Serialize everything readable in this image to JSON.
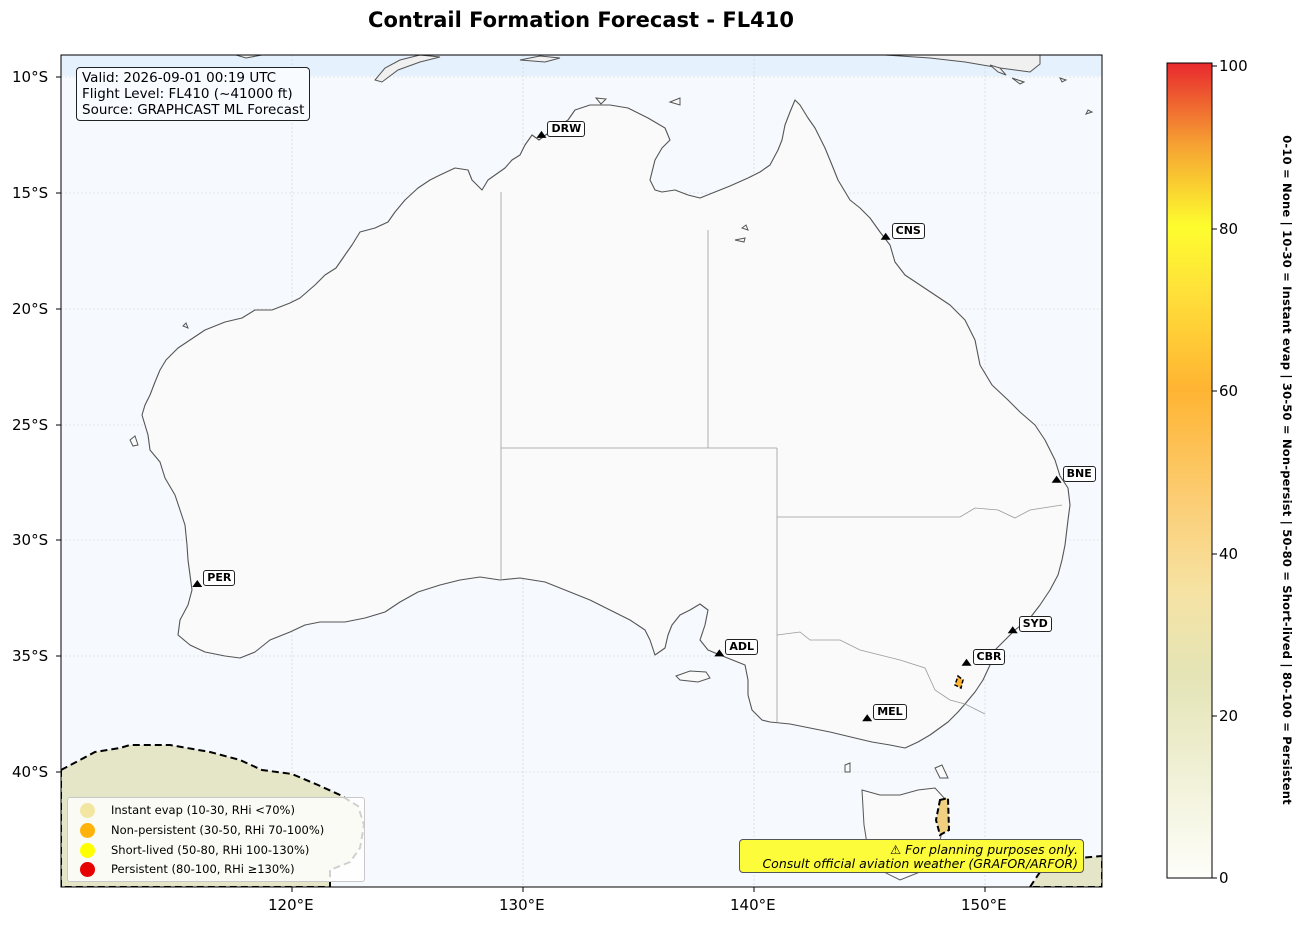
{
  "title": "Contrail Formation Forecast - FL410",
  "info": {
    "valid": "Valid: 2026-09-01 00:19 UTC",
    "flight_level": "Flight Level: FL410 (~41000 ft)",
    "source": "Source: GRAPHCAST ML Forecast"
  },
  "axes": {
    "lat_ticks": [
      "10°S",
      "15°S",
      "20°S",
      "25°S",
      "30°S",
      "35°S",
      "40°S"
    ],
    "lon_ticks": [
      "120°E",
      "130°E",
      "140°E",
      "150°E"
    ]
  },
  "colorbar": {
    "ticks": [
      "0",
      "20",
      "40",
      "60",
      "80",
      "100"
    ],
    "label": "0-10 = None  |  10-30 = Instant evap  |  30-50 = Non-persist  |  50-80 = Short-lived  |  80-100 = Persistent",
    "colors": [
      "#fefefa",
      "#e7e7b9",
      "#fbd98a",
      "#ffb432",
      "#fdfd2e",
      "#e8292e"
    ]
  },
  "legend": [
    {
      "label": "Instant evap (10-30, RHi <70%)",
      "color": "#f2e6a2"
    },
    {
      "label": "Non-persistent (30-50, RHi 70-100%)",
      "color": "#ffb20a"
    },
    {
      "label": "Short-lived (50-80, RHi 100-130%)",
      "color": "#ffff00"
    },
    {
      "label": "Persistent (80-100, RHi ≥130%)",
      "color": "#e60000"
    }
  ],
  "stations": [
    {
      "code": "DRW",
      "lon": 130.8,
      "lat": -12.5
    },
    {
      "code": "CNS",
      "lon": 145.7,
      "lat": -16.9
    },
    {
      "code": "BNE",
      "lon": 153.1,
      "lat": -27.4
    },
    {
      "code": "PER",
      "lon": 115.9,
      "lat": -31.9
    },
    {
      "code": "SYD",
      "lon": 151.2,
      "lat": -33.9
    },
    {
      "code": "ADL",
      "lon": 138.5,
      "lat": -34.9
    },
    {
      "code": "CBR",
      "lon": 149.2,
      "lat": -35.3
    },
    {
      "code": "MEL",
      "lon": 144.9,
      "lat": -37.7
    }
  ],
  "disclaimer": {
    "line1": "⚠ For planning purposes only.",
    "line2": "Consult official aviation weather (GRAFOR/ARFOR)"
  }
}
